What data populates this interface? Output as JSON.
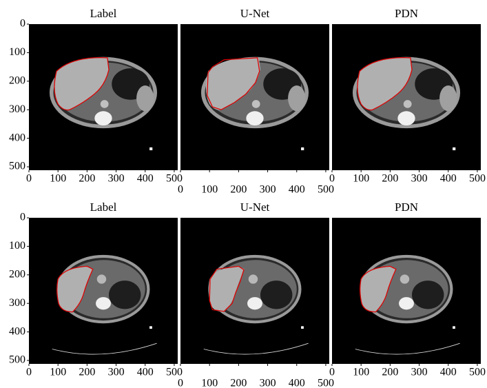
{
  "chart_data": [
    {
      "type": "image",
      "title": "Label",
      "xlim": [
        0,
        512
      ],
      "ylim": [
        512,
        0
      ],
      "xticks": [
        0,
        100,
        200,
        300,
        400,
        500
      ],
      "yticks": [
        0,
        100,
        200,
        300,
        400,
        500
      ]
    },
    {
      "type": "image",
      "title": "U-Net",
      "xlim": [
        0,
        512
      ],
      "ylim": [
        512,
        0
      ],
      "xticks": [
        0,
        100,
        200,
        300,
        400,
        500
      ]
    },
    {
      "type": "image",
      "title": "PDN",
      "xlim": [
        0,
        512
      ],
      "ylim": [
        512,
        0
      ],
      "xticks": [
        0,
        100,
        200,
        300,
        400,
        500
      ]
    },
    {
      "type": "image",
      "title": "Label",
      "xlim": [
        0,
        512
      ],
      "ylim": [
        512,
        0
      ],
      "xticks": [
        0,
        100,
        200,
        300,
        400,
        500
      ],
      "yticks": [
        0,
        100,
        200,
        300,
        400,
        500
      ]
    },
    {
      "type": "image",
      "title": "U-Net",
      "xlim": [
        0,
        512
      ],
      "ylim": [
        512,
        0
      ],
      "xticks": [
        0,
        100,
        200,
        300,
        400,
        500
      ]
    },
    {
      "type": "image",
      "title": "PDN",
      "xlim": [
        0,
        512
      ],
      "ylim": [
        512,
        0
      ],
      "xticks": [
        0,
        100,
        200,
        300,
        400,
        500
      ]
    }
  ]
}
